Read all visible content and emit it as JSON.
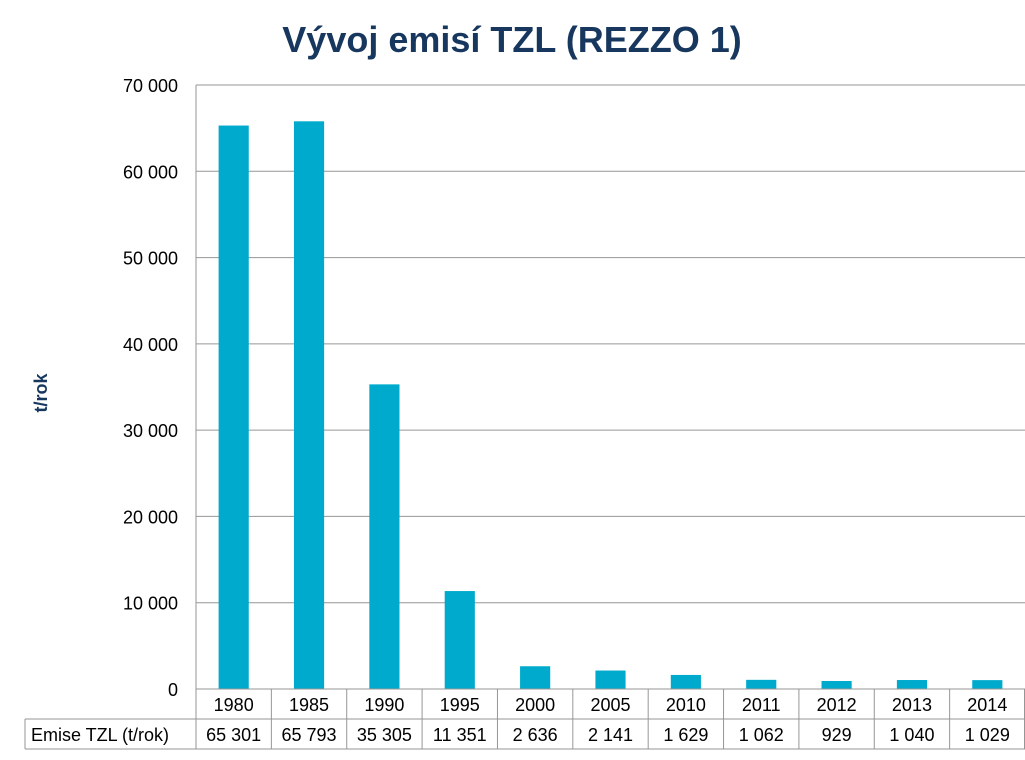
{
  "chart_data": {
    "type": "bar",
    "title": "Vývoj emisí TZL (REZZO 1)",
    "xlabel": "",
    "ylabel": "t/rok",
    "ylim": [
      0,
      70000
    ],
    "yticks": [
      0,
      10000,
      20000,
      30000,
      40000,
      50000,
      60000,
      70000
    ],
    "ytick_labels": [
      "0",
      "10 000",
      "20 000",
      "30 000",
      "40 000",
      "50 000",
      "60 000",
      "70 000"
    ],
    "grid": true,
    "categories": [
      "1980",
      "1985",
      "1990",
      "1995",
      "2000",
      "2005",
      "2010",
      "2011",
      "2012",
      "2013",
      "2014"
    ],
    "series": [
      {
        "name": "Emise TZL (t/rok)",
        "color": "#00AACC",
        "values": [
          65301,
          65793,
          35305,
          11351,
          2636,
          2141,
          1629,
          1062,
          929,
          1040,
          1029
        ],
        "labels": [
          "65 301",
          "65 793",
          "35 305",
          "11 351",
          "2 636",
          "2 141",
          "1 629",
          "1 062",
          "929",
          "1 040",
          "1 029"
        ]
      }
    ],
    "data_table": true
  }
}
